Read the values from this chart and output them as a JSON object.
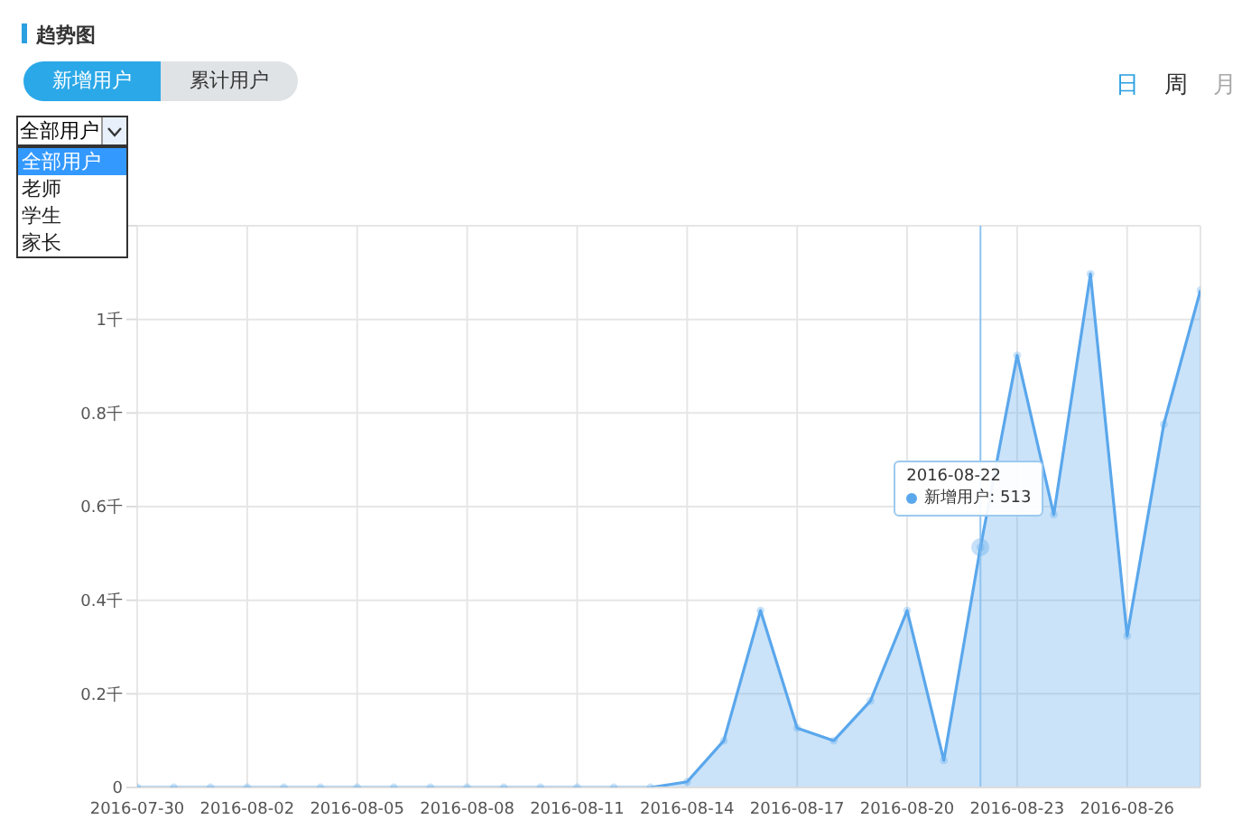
{
  "chart_data": {
    "type": "area",
    "title": "趋势图",
    "annotations": [
      "新增用户",
      "累计用户",
      "日",
      "周",
      "月",
      "全部用户",
      "全部用户",
      "老师",
      "学生",
      "家长",
      "2016-08-22",
      "新增用户: 513"
    ],
    "x": [
      "2016-07-30",
      "2016-07-31",
      "2016-08-01",
      "2016-08-02",
      "2016-08-03",
      "2016-08-04",
      "2016-08-05",
      "2016-08-06",
      "2016-08-07",
      "2016-08-08",
      "2016-08-09",
      "2016-08-10",
      "2016-08-11",
      "2016-08-12",
      "2016-08-13",
      "2016-08-14",
      "2016-08-15",
      "2016-08-16",
      "2016-08-17",
      "2016-08-18",
      "2016-08-19",
      "2016-08-20",
      "2016-08-21",
      "2016-08-22",
      "2016-08-23",
      "2016-08-24",
      "2016-08-25",
      "2016-08-26",
      "2016-08-27",
      "2016-08-28"
    ],
    "series": [
      {
        "color": "#5aa7ec",
        "values": [
          0,
          0,
          0,
          0,
          0,
          0,
          0,
          0,
          0,
          0,
          0,
          0,
          0,
          0,
          0,
          0.012,
          0.1,
          0.378,
          0.127,
          0.1,
          0.185,
          0.378,
          0.058,
          0.513,
          0.923,
          0.583,
          1.097,
          0.324,
          0.776,
          1.062
        ]
      }
    ],
    "xlim": [
      "2016-07-30",
      "2016-08-28"
    ],
    "xticks": [
      "2016-07-30",
      "2016-08-02",
      "2016-08-05",
      "2016-08-08",
      "2016-08-11",
      "2016-08-14",
      "2016-08-17",
      "2016-08-20",
      "2016-08-23",
      "2016-08-26"
    ],
    "ylim": [
      0,
      1.2
    ],
    "yticks": [
      0,
      {
        "value": 0.2,
        "label": "0.2千"
      },
      {
        "value": 0.4,
        "label": "0.4千"
      },
      {
        "value": 0.6,
        "label": "0.6千"
      },
      {
        "value": 0.8,
        "label": "0.8千"
      },
      {
        "value": 1,
        "label": "1千"
      },
      {
        "value": 1.2,
        "label": null
      }
    ],
    "ref_lines": [
      {
        "axis": "x",
        "value": "2016-08-22",
        "color": "#8fc3f0"
      }
    ],
    "grid": true,
    "marker": "circle",
    "line_style": "solid"
  }
}
